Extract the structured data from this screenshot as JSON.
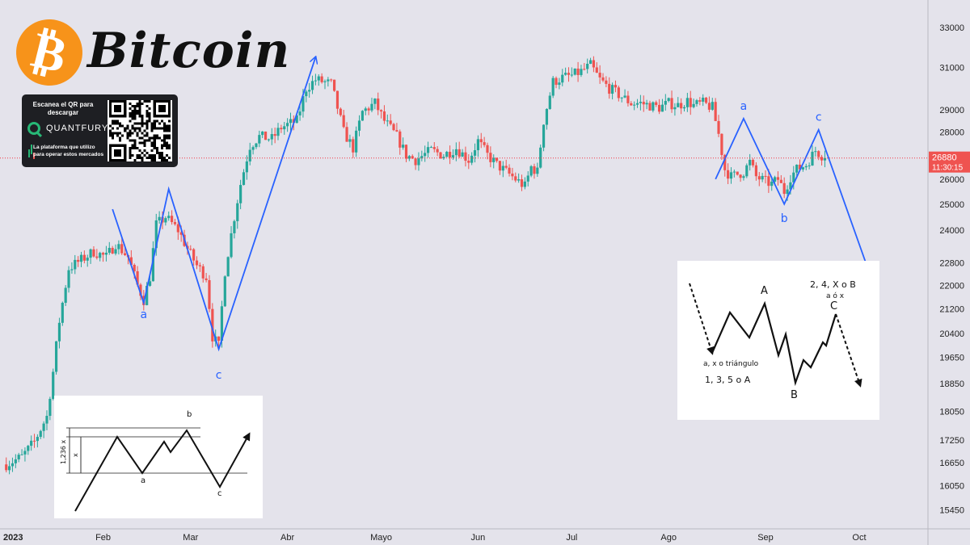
{
  "header": {
    "coin_symbol": "₿",
    "title": "Bitcoin"
  },
  "promo": {
    "scan_text": "Escanea el QR para descargar",
    "brand": "QUANTFURY",
    "tagline": "La plataforma que utilizo para operar estos mercados"
  },
  "price_line": {
    "price_label": "26880",
    "countdown_label": "11:30:15",
    "line_color": "#f23645"
  },
  "colors": {
    "up": "#26a69a",
    "down": "#ef5350",
    "wave": "#2962ff",
    "background": "#e4e3eb"
  },
  "chart_data": {
    "type": "candlestick",
    "x_unit": "day of year 2023",
    "xlim": [
      -2,
      295
    ],
    "ylim": [
      15000,
      33600
    ],
    "y_scale": "log",
    "grid": false,
    "y_ticks": [
      33000,
      31000,
      29000,
      28000,
      26000,
      25000,
      24000,
      22800,
      22000,
      21200,
      20400,
      19650,
      18850,
      18050,
      17250,
      16650,
      16050,
      15450
    ],
    "x_ticks": [
      {
        "label": "2023",
        "x": 0
      },
      {
        "label": "Feb",
        "x": 31
      },
      {
        "label": "Mar",
        "x": 59
      },
      {
        "label": "Abr",
        "x": 90
      },
      {
        "label": "Mayo",
        "x": 120
      },
      {
        "label": "Jun",
        "x": 151
      },
      {
        "label": "Jul",
        "x": 181
      },
      {
        "label": "Ago",
        "x": 212
      },
      {
        "label": "Sep",
        "x": 243
      },
      {
        "label": "Oct",
        "x": 273
      }
    ],
    "anchors": [
      [
        0,
        16600
      ],
      [
        5,
        16800
      ],
      [
        9,
        17200
      ],
      [
        13,
        17900
      ],
      [
        15,
        19200
      ],
      [
        17,
        20800
      ],
      [
        20,
        22600
      ],
      [
        24,
        22900
      ],
      [
        28,
        23200
      ],
      [
        32,
        23000
      ],
      [
        35,
        23500
      ],
      [
        39,
        23000
      ],
      [
        42,
        22000
      ],
      [
        44,
        21500
      ],
      [
        46,
        22300
      ],
      [
        48,
        24200
      ],
      [
        51,
        24500
      ],
      [
        55,
        24000
      ],
      [
        58,
        23300
      ],
      [
        61,
        22700
      ],
      [
        64,
        22300
      ],
      [
        66,
        20300
      ],
      [
        68,
        20000
      ],
      [
        70,
        22500
      ],
      [
        73,
        24500
      ],
      [
        75,
        25800
      ],
      [
        78,
        27400
      ],
      [
        81,
        27800
      ],
      [
        85,
        27700
      ],
      [
        88,
        28200
      ],
      [
        93,
        28500
      ],
      [
        96,
        30000
      ],
      [
        99,
        30400
      ],
      [
        104,
        30200
      ],
      [
        108,
        28000
      ],
      [
        111,
        27300
      ],
      [
        114,
        28900
      ],
      [
        118,
        29300
      ],
      [
        121,
        28500
      ],
      [
        125,
        27800
      ],
      [
        128,
        27000
      ],
      [
        131,
        26800
      ],
      [
        136,
        27200
      ],
      [
        140,
        27000
      ],
      [
        144,
        27300
      ],
      [
        148,
        26800
      ],
      [
        151,
        27600
      ],
      [
        154,
        27000
      ],
      [
        157,
        26600
      ],
      [
        160,
        26300
      ],
      [
        163,
        26000
      ],
      [
        166,
        25700
      ],
      [
        168,
        26500
      ],
      [
        170,
        26300
      ],
      [
        172,
        28500
      ],
      [
        175,
        30300
      ],
      [
        178,
        30500
      ],
      [
        181,
        30600
      ],
      [
        184,
        30800
      ],
      [
        187,
        31100
      ],
      [
        190,
        30400
      ],
      [
        193,
        30000
      ],
      [
        197,
        29600
      ],
      [
        200,
        29300
      ],
      [
        203,
        29300
      ],
      [
        206,
        29200
      ],
      [
        209,
        29100
      ],
      [
        212,
        29300
      ],
      [
        215,
        29200
      ],
      [
        218,
        29400
      ],
      [
        220,
        29200
      ],
      [
        223,
        29300
      ],
      [
        226,
        29100
      ],
      [
        228,
        27900
      ],
      [
        230,
        26400
      ],
      [
        232,
        26100
      ],
      [
        234,
        26200
      ],
      [
        236,
        26300
      ],
      [
        238,
        26700
      ],
      [
        240,
        26100
      ],
      [
        243,
        25900
      ],
      [
        245,
        25800
      ],
      [
        247,
        26000
      ],
      [
        249,
        25500
      ],
      [
        251,
        26100
      ],
      [
        253,
        26400
      ],
      [
        256,
        26600
      ],
      [
        259,
        27200
      ],
      [
        262,
        26900
      ]
    ],
    "candles_count": 263,
    "last_price": 26880,
    "annotations": [
      {
        "text": "a",
        "x": 44,
        "y": 20900
      },
      {
        "text": "b",
        "x": 53,
        "y": 26500
      },
      {
        "text": "c",
        "x": 68,
        "y": 19000
      },
      {
        "text": "a",
        "x": 236,
        "y": 29000
      },
      {
        "text": "b",
        "x": 249,
        "y": 24300
      },
      {
        "text": "c",
        "x": 260,
        "y": 28500
      }
    ],
    "wave_paths": [
      [
        [
          34,
          24800
        ],
        [
          44,
          21400
        ],
        [
          52,
          25600
        ],
        [
          68,
          19900
        ],
        [
          99,
          31500
        ]
      ],
      [
        [
          227,
          26000
        ],
        [
          236,
          28600
        ],
        [
          249,
          25000
        ],
        [
          260,
          28100
        ],
        [
          278,
          21900
        ]
      ]
    ]
  },
  "insets": {
    "flat": {
      "labels": {
        "b": "b",
        "a": "a",
        "c": "c",
        "x": "x",
        "ext": "1,236 x"
      }
    },
    "wxy": {
      "labels": {
        "A": "A",
        "B": "B",
        "C": "C",
        "top": "2, 4, X o B",
        "sub": "a ó x",
        "left1": "a, x o triángulo",
        "left2": "1, 3, 5 o A"
      }
    }
  }
}
